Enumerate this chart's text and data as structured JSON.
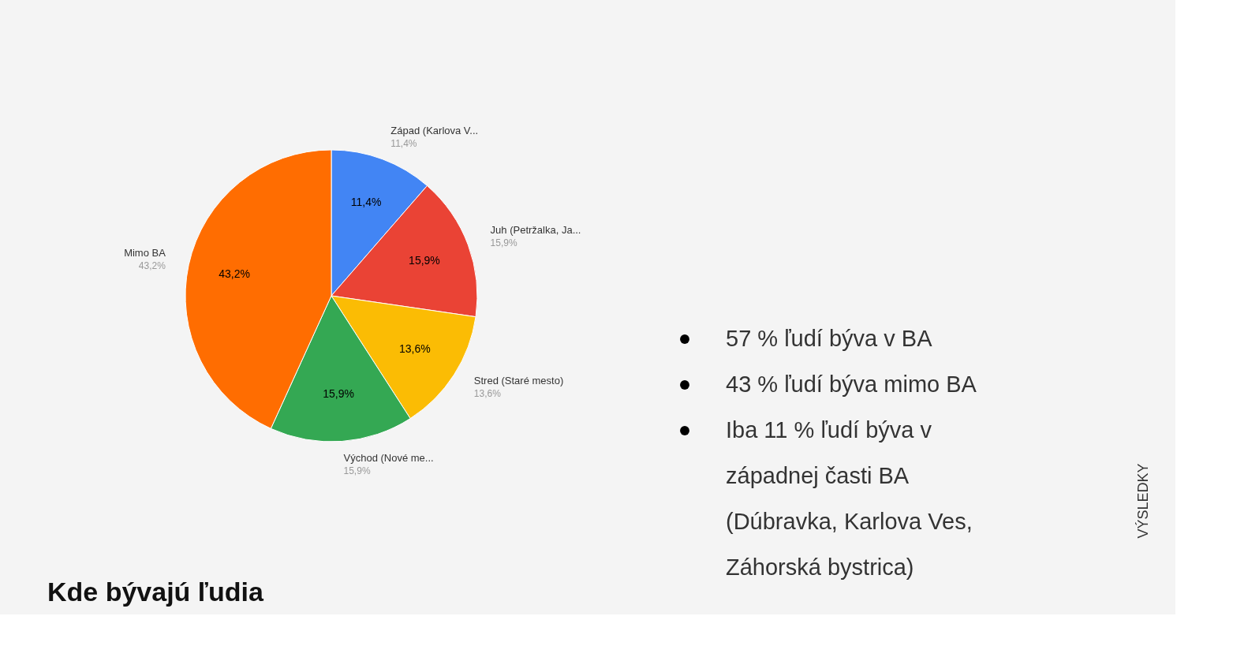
{
  "chart_data": {
    "type": "pie",
    "title": "Kde bývajú ľudia",
    "categories": [
      "Západ (Karlova V...",
      "Juh (Petržalka, Ja...",
      "Stred (Staré mesto)",
      "Východ (Nové me...",
      "Mimo BA"
    ],
    "values": [
      11.4,
      15.9,
      13.6,
      15.9,
      43.2
    ],
    "colors": [
      "#4285f4",
      "#ea4335",
      "#fbbc04",
      "#34a853",
      "#ff6d01"
    ],
    "value_labels": [
      "11,4%",
      "15,9%",
      "13,6%",
      "15,9%",
      "43,2%"
    ],
    "legend": false,
    "annotations": [
      "57 % ľudí býva v BA",
      "43 % ľudí býva mimo BA",
      "Iba 11 % ľudí býva v západnej časti BA (Dúbravka, Karlova Ves, Záhorská bystrica)",
      "VÝSLEDKY"
    ]
  }
}
